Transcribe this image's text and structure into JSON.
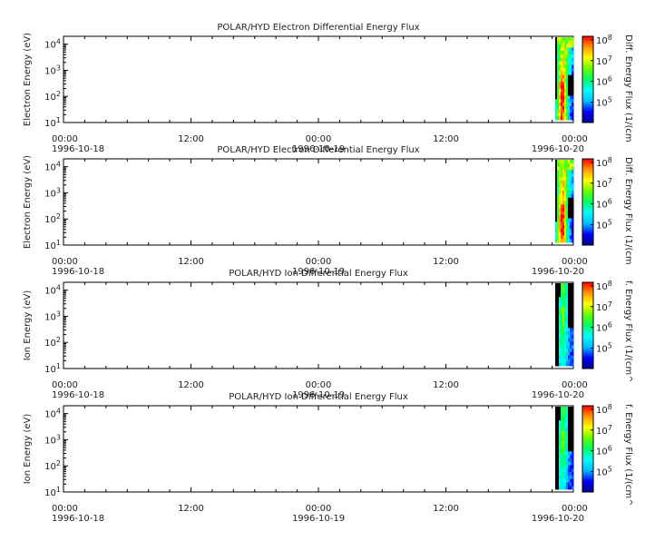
{
  "chart_data": [
    {
      "type": "heatmap",
      "title": "POLAR/HYD  Electron Differential Energy Flux",
      "ylabel": "Electron Energy (eV)",
      "colorbar_label": "Diff. Energy Flux (1/(cm",
      "y_scale": "log",
      "ylim": [
        10,
        20000
      ],
      "y_ticks": [
        {
          "base": "10",
          "exp": "1"
        },
        {
          "base": "10",
          "exp": "2"
        },
        {
          "base": "10",
          "exp": "3"
        },
        {
          "base": "10",
          "exp": "4"
        }
      ],
      "colorbar_ticks": [
        {
          "base": "10",
          "exp": "5"
        },
        {
          "base": "10",
          "exp": "6"
        },
        {
          "base": "10",
          "exp": "7"
        },
        {
          "base": "10",
          "exp": "8"
        }
      ],
      "x_ticks": [
        {
          "time": "00:00",
          "date": "1996-10-18"
        },
        {
          "time": "12:00",
          "date": ""
        },
        {
          "time": "00:00",
          "date": "1996-10-19"
        },
        {
          "time": "12:00",
          "date": ""
        },
        {
          "time": "00:00",
          "date": "1996-10-20"
        }
      ],
      "data_time_range": [
        "1996-10-19T23:00",
        "1996-10-20T00:00"
      ],
      "species": "electron"
    },
    {
      "type": "heatmap",
      "title": "POLAR/HYD  Electron Differential Energy Flux",
      "ylabel": "Electron Energy (eV)",
      "colorbar_label": "Diff. Energy Flux (1/(cm",
      "y_scale": "log",
      "ylim": [
        10,
        20000
      ],
      "y_ticks": [
        {
          "base": "10",
          "exp": "1"
        },
        {
          "base": "10",
          "exp": "2"
        },
        {
          "base": "10",
          "exp": "3"
        },
        {
          "base": "10",
          "exp": "4"
        }
      ],
      "colorbar_ticks": [
        {
          "base": "10",
          "exp": "5"
        },
        {
          "base": "10",
          "exp": "6"
        },
        {
          "base": "10",
          "exp": "7"
        },
        {
          "base": "10",
          "exp": "8"
        }
      ],
      "x_ticks": [
        {
          "time": "00:00",
          "date": "1996-10-18"
        },
        {
          "time": "12:00",
          "date": ""
        },
        {
          "time": "00:00",
          "date": "1996-10-19"
        },
        {
          "time": "12:00",
          "date": ""
        },
        {
          "time": "00:00",
          "date": "1996-10-20"
        }
      ],
      "data_time_range": [
        "1996-10-19T23:00",
        "1996-10-20T00:00"
      ],
      "species": "electron"
    },
    {
      "type": "heatmap",
      "title": "POLAR/HYD  Ion Differential Energy Flux",
      "ylabel": "Ion Energy (eV)",
      "colorbar_label": "f. Energy Flux (1/(cm^",
      "y_scale": "log",
      "ylim": [
        10,
        20000
      ],
      "y_ticks": [
        {
          "base": "10",
          "exp": "1"
        },
        {
          "base": "10",
          "exp": "2"
        },
        {
          "base": "10",
          "exp": "3"
        },
        {
          "base": "10",
          "exp": "4"
        }
      ],
      "colorbar_ticks": [
        {
          "base": "10",
          "exp": "5"
        },
        {
          "base": "10",
          "exp": "6"
        },
        {
          "base": "10",
          "exp": "7"
        },
        {
          "base": "10",
          "exp": "8"
        }
      ],
      "x_ticks": [
        {
          "time": "00:00",
          "date": "1996-10-18"
        },
        {
          "time": "12:00",
          "date": ""
        },
        {
          "time": "00:00",
          "date": "1996-10-19"
        },
        {
          "time": "12:00",
          "date": ""
        },
        {
          "time": "00:00",
          "date": "1996-10-20"
        }
      ],
      "data_time_range": [
        "1996-10-19T23:00",
        "1996-10-20T00:00"
      ],
      "species": "ion"
    },
    {
      "type": "heatmap",
      "title": "POLAR/HYD  Ion Differential Energy Flux",
      "ylabel": "Ion Energy (eV)",
      "colorbar_label": "f. Energy Flux (1/(cm^",
      "y_scale": "log",
      "ylim": [
        10,
        20000
      ],
      "y_ticks": [
        {
          "base": "10",
          "exp": "1"
        },
        {
          "base": "10",
          "exp": "2"
        },
        {
          "base": "10",
          "exp": "3"
        },
        {
          "base": "10",
          "exp": "4"
        }
      ],
      "colorbar_ticks": [
        {
          "base": "10",
          "exp": "5"
        },
        {
          "base": "10",
          "exp": "6"
        },
        {
          "base": "10",
          "exp": "7"
        },
        {
          "base": "10",
          "exp": "8"
        }
      ],
      "x_ticks": [
        {
          "time": "00:00",
          "date": "1996-10-18"
        },
        {
          "time": "12:00",
          "date": ""
        },
        {
          "time": "00:00",
          "date": "1996-10-19"
        },
        {
          "time": "12:00",
          "date": ""
        },
        {
          "time": "00:00",
          "date": "1996-10-20"
        }
      ],
      "data_time_range": [
        "1996-10-19T23:00",
        "1996-10-20T00:00"
      ],
      "species": "ion"
    }
  ],
  "colormap": [
    "#00008b",
    "#0000ff",
    "#00bfff",
    "#00ffff",
    "#00ff66",
    "#66ff00",
    "#ffff00",
    "#ff9900",
    "#ff0000"
  ],
  "colors": {
    "axis": "#000000",
    "text": "#222222",
    "background": "#ffffff",
    "no_data": "#000000"
  }
}
